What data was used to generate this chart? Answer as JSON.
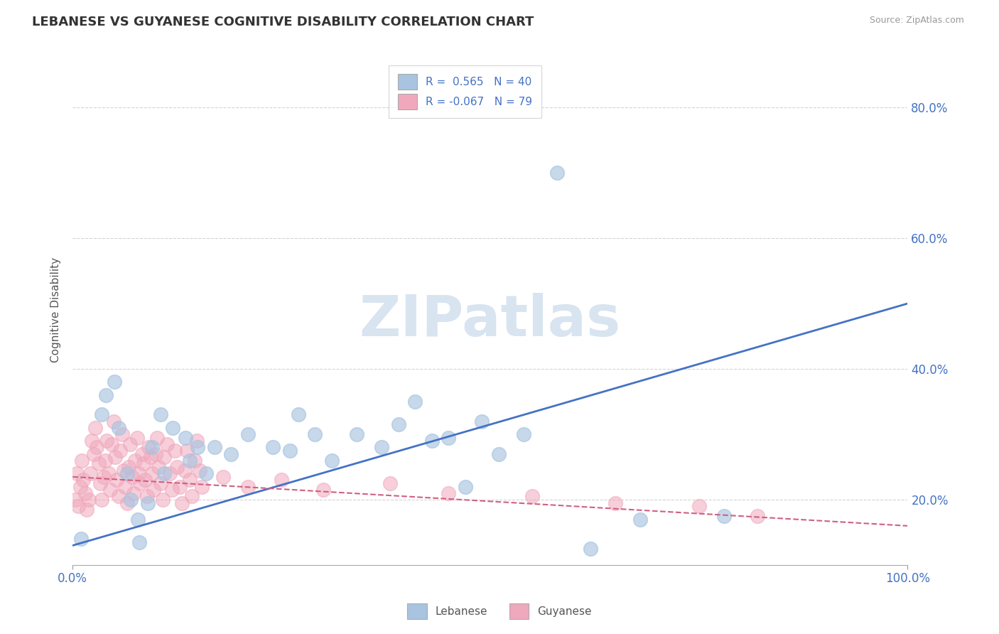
{
  "title": "LEBANESE VS GUYANESE COGNITIVE DISABILITY CORRELATION CHART",
  "source": "Source: ZipAtlas.com",
  "xlabel": "",
  "ylabel": "Cognitive Disability",
  "watermark": "ZIPatlas",
  "legend_r1": "R =  0.565   N = 40",
  "legend_r2": "R = -0.067   N = 79",
  "xlim": [
    0,
    100
  ],
  "ylim": [
    10,
    88
  ],
  "yticks": [
    20,
    40,
    60,
    80
  ],
  "ytick_labels": [
    "20.0%",
    "40.0%",
    "60.0%",
    "80.0%"
  ],
  "xticks": [
    0,
    100
  ],
  "xtick_labels": [
    "0.0%",
    "100.0%"
  ],
  "title_fontsize": 13,
  "axis_label_fontsize": 11,
  "background_color": "#ffffff",
  "grid_color": "#c8c8c8",
  "blue_color": "#a8c4e0",
  "pink_color": "#f0a8bc",
  "blue_line_color": "#4472c4",
  "pink_line_color": "#d06080",
  "legend_r_color": "#4472c4",
  "watermark_color": "#d8e4f0",
  "lebanese_points": [
    [
      1.0,
      14.0
    ],
    [
      3.5,
      33.0
    ],
    [
      4.0,
      36.0
    ],
    [
      5.0,
      38.0
    ],
    [
      5.5,
      31.0
    ],
    [
      6.5,
      24.0
    ],
    [
      7.0,
      20.0
    ],
    [
      7.8,
      17.0
    ],
    [
      8.0,
      13.5
    ],
    [
      9.0,
      19.5
    ],
    [
      9.5,
      28.0
    ],
    [
      10.5,
      33.0
    ],
    [
      11.0,
      24.0
    ],
    [
      12.0,
      31.0
    ],
    [
      13.5,
      29.5
    ],
    [
      14.0,
      26.0
    ],
    [
      15.0,
      28.0
    ],
    [
      16.0,
      24.0
    ],
    [
      17.0,
      28.0
    ],
    [
      19.0,
      27.0
    ],
    [
      21.0,
      30.0
    ],
    [
      24.0,
      28.0
    ],
    [
      26.0,
      27.5
    ],
    [
      27.0,
      33.0
    ],
    [
      29.0,
      30.0
    ],
    [
      31.0,
      26.0
    ],
    [
      34.0,
      30.0
    ],
    [
      37.0,
      28.0
    ],
    [
      39.0,
      31.5
    ],
    [
      41.0,
      35.0
    ],
    [
      43.0,
      29.0
    ],
    [
      45.0,
      29.5
    ],
    [
      47.0,
      22.0
    ],
    [
      49.0,
      32.0
    ],
    [
      51.0,
      27.0
    ],
    [
      54.0,
      30.0
    ],
    [
      58.0,
      70.0
    ],
    [
      62.0,
      12.5
    ],
    [
      68.0,
      17.0
    ],
    [
      78.0,
      17.5
    ]
  ],
  "guyanese_points": [
    [
      0.3,
      20.0
    ],
    [
      0.5,
      24.0
    ],
    [
      0.7,
      19.0
    ],
    [
      0.9,
      22.0
    ],
    [
      1.1,
      26.0
    ],
    [
      1.3,
      23.0
    ],
    [
      1.5,
      21.0
    ],
    [
      1.7,
      18.5
    ],
    [
      1.9,
      20.0
    ],
    [
      2.1,
      24.0
    ],
    [
      2.3,
      29.0
    ],
    [
      2.5,
      27.0
    ],
    [
      2.7,
      31.0
    ],
    [
      2.9,
      28.0
    ],
    [
      3.1,
      25.5
    ],
    [
      3.3,
      22.5
    ],
    [
      3.5,
      20.0
    ],
    [
      3.7,
      23.5
    ],
    [
      3.9,
      26.0
    ],
    [
      4.1,
      29.0
    ],
    [
      4.3,
      24.0
    ],
    [
      4.5,
      21.5
    ],
    [
      4.7,
      28.5
    ],
    [
      4.9,
      32.0
    ],
    [
      5.1,
      26.5
    ],
    [
      5.3,
      23.0
    ],
    [
      5.5,
      20.5
    ],
    [
      5.7,
      27.5
    ],
    [
      5.9,
      30.0
    ],
    [
      6.1,
      24.5
    ],
    [
      6.3,
      22.0
    ],
    [
      6.5,
      19.5
    ],
    [
      6.7,
      25.0
    ],
    [
      6.9,
      28.5
    ],
    [
      7.1,
      23.5
    ],
    [
      7.3,
      21.0
    ],
    [
      7.5,
      26.0
    ],
    [
      7.7,
      29.5
    ],
    [
      7.9,
      24.0
    ],
    [
      8.1,
      22.5
    ],
    [
      8.3,
      27.0
    ],
    [
      8.5,
      25.5
    ],
    [
      8.7,
      23.0
    ],
    [
      8.9,
      20.5
    ],
    [
      9.1,
      28.0
    ],
    [
      9.3,
      26.5
    ],
    [
      9.5,
      24.0
    ],
    [
      9.7,
      21.5
    ],
    [
      9.9,
      27.0
    ],
    [
      10.1,
      29.5
    ],
    [
      10.3,
      25.0
    ],
    [
      10.5,
      22.5
    ],
    [
      10.8,
      20.0
    ],
    [
      11.0,
      26.5
    ],
    [
      11.3,
      28.5
    ],
    [
      11.6,
      24.0
    ],
    [
      11.9,
      21.5
    ],
    [
      12.2,
      27.5
    ],
    [
      12.5,
      25.0
    ],
    [
      12.8,
      22.0
    ],
    [
      13.1,
      19.5
    ],
    [
      13.4,
      24.5
    ],
    [
      13.7,
      27.5
    ],
    [
      14.0,
      23.0
    ],
    [
      14.3,
      20.5
    ],
    [
      14.6,
      26.0
    ],
    [
      14.9,
      29.0
    ],
    [
      15.2,
      24.5
    ],
    [
      15.5,
      22.0
    ],
    [
      18.0,
      23.5
    ],
    [
      21.0,
      22.0
    ],
    [
      25.0,
      23.0
    ],
    [
      30.0,
      21.5
    ],
    [
      38.0,
      22.5
    ],
    [
      45.0,
      21.0
    ],
    [
      55.0,
      20.5
    ],
    [
      65.0,
      19.5
    ],
    [
      75.0,
      19.0
    ],
    [
      82.0,
      17.5
    ]
  ],
  "blue_line_x": [
    0,
    100
  ],
  "blue_line_y": [
    13.0,
    50.0
  ],
  "pink_line_x": [
    0,
    100
  ],
  "pink_line_y": [
    23.5,
    16.0
  ]
}
